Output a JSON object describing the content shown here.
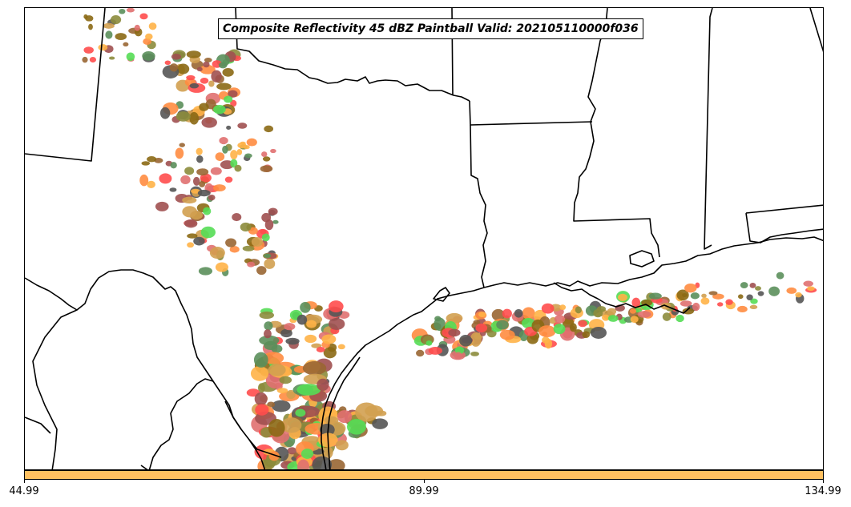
{
  "title": "Composite Reflectivity 45 dBZ Paintball Valid: 202105110000f036",
  "colorbar": {
    "color": "#ffc060",
    "ticks": [
      "44.99",
      "89.99",
      "134.99"
    ]
  },
  "member_colors": [
    "#ff4d4d",
    "#55dd55",
    "#8b6914",
    "#555555",
    "#ffb347",
    "#5b8f5b",
    "#996633",
    "#a05050",
    "#ff8c40",
    "#d2a050",
    "#8c8c3c",
    "#e07070"
  ],
  "map": {
    "boundary_color": "#000000",
    "background": "#ffffff"
  }
}
